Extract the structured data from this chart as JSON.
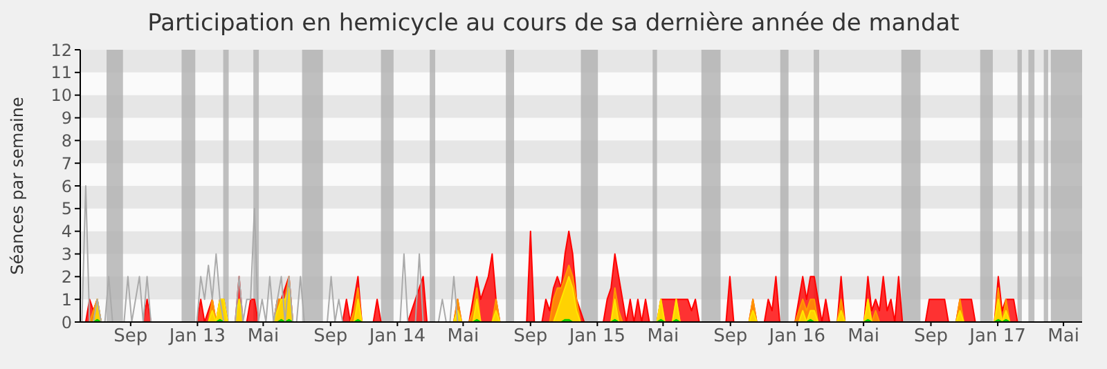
{
  "chart_data": {
    "type": "area",
    "title": "Participation en hemicycle au cours de sa dernière année de mandat",
    "ylabel": "Séances par semaine",
    "series": [
      {
        "type": "line",
        "color": "#aaaaaa",
        "x": [
          "2012-06-04",
          "2012-06-11",
          "2012-06-18",
          "2012-06-25",
          "2012-07-02",
          "2012-07-09",
          "2012-07-16",
          "2012-07-23",
          "2012-07-30",
          "2012-08-20",
          "2012-08-27",
          "2012-09-03",
          "2012-09-17",
          "2012-09-24",
          "2012-10-01",
          "2012-10-08",
          "2012-12-31",
          "2013-01-07",
          "2013-01-14",
          "2013-01-21",
          "2013-01-28",
          "2013-02-04",
          "2013-02-11",
          "2013-02-18",
          "2013-03-11",
          "2013-03-18",
          "2013-03-25",
          "2013-04-01",
          "2013-04-08",
          "2013-04-15",
          "2013-04-22",
          "2013-04-29",
          "2013-05-06",
          "2013-05-13",
          "2013-05-20",
          "2013-05-27",
          "2013-06-03",
          "2013-06-10",
          "2013-06-17",
          "2013-06-24",
          "2013-07-01",
          "2013-07-08",
          "2013-07-15",
          "2013-08-26",
          "2013-09-02",
          "2013-09-09",
          "2013-09-16",
          "2013-09-23",
          "2014-01-06",
          "2014-01-13",
          "2014-01-20",
          "2014-02-03",
          "2014-02-10",
          "2014-02-17",
          "2014-03-17",
          "2014-03-24",
          "2014-03-31",
          "2014-04-07",
          "2014-04-14",
          "2014-04-21",
          "2017-05-29"
        ],
        "values": [
          0,
          6,
          0,
          0,
          1,
          0,
          0,
          2,
          0,
          0,
          2,
          0,
          2,
          0,
          2,
          0,
          0,
          2,
          1,
          2.5,
          1,
          3,
          1,
          0,
          0,
          2,
          0,
          1,
          1,
          5,
          0,
          1,
          0,
          2,
          0,
          1,
          2,
          0,
          2,
          0,
          0,
          2,
          0,
          0,
          2,
          0,
          1,
          0,
          0,
          3,
          0,
          0,
          3,
          0,
          0,
          1,
          0,
          0,
          2,
          0,
          0
        ]
      },
      {
        "color": "#ff0000",
        "x": [
          "2012-06-04",
          "2012-06-11",
          "2012-06-18",
          "2012-06-25",
          "2012-07-02",
          "2012-07-09",
          "2012-09-24",
          "2012-10-01",
          "2012-10-08",
          "2012-12-31",
          "2013-01-07",
          "2013-01-14",
          "2013-01-21",
          "2013-01-28",
          "2013-02-04",
          "2013-02-11",
          "2013-02-18",
          "2013-02-25",
          "2013-03-11",
          "2013-03-18",
          "2013-03-25",
          "2013-04-01",
          "2013-04-08",
          "2013-04-15",
          "2013-04-22",
          "2013-05-20",
          "2013-05-27",
          "2013-06-03",
          "2013-06-10",
          "2013-06-17",
          "2013-06-24",
          "2013-09-23",
          "2013-09-30",
          "2013-10-07",
          "2013-10-14",
          "2013-10-21",
          "2013-10-28",
          "2013-11-18",
          "2013-11-25",
          "2013-12-02",
          "2014-01-20",
          "2014-01-27",
          "2014-02-03",
          "2014-02-10",
          "2014-02-17",
          "2014-02-24",
          "2014-04-14",
          "2014-04-21",
          "2014-04-28",
          "2014-05-12",
          "2014-05-19",
          "2014-05-26",
          "2014-06-02",
          "2014-06-09",
          "2014-06-16",
          "2014-06-23",
          "2014-06-30",
          "2014-07-07",
          "2014-08-25",
          "2014-09-01",
          "2014-09-08",
          "2014-09-22",
          "2014-09-29",
          "2014-10-06",
          "2014-10-13",
          "2014-10-20",
          "2014-10-27",
          "2014-11-03",
          "2014-11-10",
          "2014-11-17",
          "2014-11-24",
          "2014-12-01",
          "2014-12-08",
          "2015-01-12",
          "2015-01-19",
          "2015-01-26",
          "2015-02-02",
          "2015-02-09",
          "2015-02-16",
          "2015-02-23",
          "2015-03-02",
          "2015-03-09",
          "2015-03-16",
          "2015-03-23",
          "2015-03-30",
          "2015-04-06",
          "2015-04-20",
          "2015-04-27",
          "2015-05-04",
          "2015-05-11",
          "2015-05-18",
          "2015-05-25",
          "2015-06-01",
          "2015-06-08",
          "2015-06-15",
          "2015-06-22",
          "2015-06-29",
          "2015-07-06",
          "2015-08-24",
          "2015-08-31",
          "2015-09-07",
          "2015-10-05",
          "2015-10-12",
          "2015-10-19",
          "2015-11-02",
          "2015-11-09",
          "2015-11-16",
          "2015-11-23",
          "2015-11-30",
          "2015-12-28",
          "2016-01-04",
          "2016-01-11",
          "2016-01-18",
          "2016-01-25",
          "2016-02-01",
          "2016-02-08",
          "2016-02-15",
          "2016-02-22",
          "2016-02-29",
          "2016-03-14",
          "2016-03-21",
          "2016-03-28",
          "2016-05-02",
          "2016-05-09",
          "2016-05-16",
          "2016-05-23",
          "2016-05-30",
          "2016-06-06",
          "2016-06-13",
          "2016-06-20",
          "2016-06-27",
          "2016-07-04",
          "2016-07-11",
          "2016-08-22",
          "2016-08-29",
          "2016-09-05",
          "2016-09-12",
          "2016-09-19",
          "2016-09-26",
          "2016-10-03",
          "2016-10-17",
          "2016-10-24",
          "2016-10-31",
          "2016-11-07",
          "2016-11-14",
          "2016-11-21",
          "2016-12-26",
          "2017-01-02",
          "2017-01-09",
          "2017-01-16",
          "2017-01-23",
          "2017-01-30",
          "2017-02-06",
          "2017-05-29"
        ],
        "values": [
          0,
          0,
          1,
          0.5,
          1,
          0,
          0,
          1,
          0,
          0,
          1,
          0,
          0.5,
          1,
          0,
          1,
          1,
          0,
          0,
          2,
          0,
          0,
          1,
          1,
          0,
          0,
          1,
          1,
          1.5,
          2,
          0,
          0,
          1,
          0,
          1,
          2,
          0,
          0,
          1,
          0,
          0,
          0.5,
          1,
          1.5,
          2,
          0,
          0,
          1,
          0,
          0,
          1,
          2,
          1,
          1.5,
          2,
          3,
          1,
          0,
          0,
          4,
          0,
          0,
          1,
          0.5,
          1.5,
          2,
          1.5,
          3,
          4,
          3,
          1,
          0.5,
          0,
          0,
          1,
          1.5,
          3,
          2,
          1,
          0,
          1,
          0,
          1,
          0,
          1,
          0,
          0,
          1,
          1,
          1,
          1,
          1,
          1,
          1,
          1,
          0.5,
          1,
          0,
          0,
          2,
          0,
          0,
          1,
          0,
          0,
          1,
          0.5,
          2,
          0,
          0,
          1,
          2,
          1,
          2,
          2,
          1,
          0,
          1,
          0,
          0,
          2,
          0,
          0,
          2,
          0.5,
          1,
          0.5,
          2,
          0.5,
          1,
          0,
          2,
          0,
          0,
          1,
          1,
          1,
          1,
          1,
          0,
          0,
          1,
          1,
          1,
          1,
          0,
          0,
          2,
          0.5,
          1,
          1,
          1,
          0,
          0
        ]
      },
      {
        "color": "#ff9900",
        "x": [
          "2012-06-04",
          "2012-06-18",
          "2012-06-25",
          "2012-07-02",
          "2012-07-09",
          "2013-01-21",
          "2013-01-28",
          "2013-02-04",
          "2013-02-11",
          "2013-02-18",
          "2013-02-25",
          "2013-03-11",
          "2013-03-18",
          "2013-03-25",
          "2013-05-20",
          "2013-05-27",
          "2013-06-03",
          "2013-06-10",
          "2013-06-17",
          "2013-06-24",
          "2013-10-07",
          "2013-10-14",
          "2013-10-21",
          "2013-10-28",
          "2014-04-14",
          "2014-04-21",
          "2014-04-28",
          "2014-05-12",
          "2014-05-19",
          "2014-05-26",
          "2014-06-02",
          "2014-06-23",
          "2014-06-30",
          "2014-07-07",
          "2014-10-06",
          "2014-10-13",
          "2014-10-20",
          "2014-10-27",
          "2014-11-03",
          "2014-11-10",
          "2014-11-17",
          "2014-11-24",
          "2014-12-01",
          "2015-01-26",
          "2015-02-02",
          "2015-02-09",
          "2015-02-16",
          "2015-04-20",
          "2015-04-27",
          "2015-05-04",
          "2015-05-18",
          "2015-05-25",
          "2015-06-01",
          "2015-10-05",
          "2015-10-12",
          "2015-10-19",
          "2015-12-28",
          "2016-01-04",
          "2016-01-11",
          "2016-01-18",
          "2016-01-25",
          "2016-02-01",
          "2016-02-08",
          "2016-03-14",
          "2016-03-21",
          "2016-03-28",
          "2016-05-02",
          "2016-05-09",
          "2016-05-16",
          "2016-05-23",
          "2016-05-30",
          "2016-10-17",
          "2016-10-24",
          "2016-10-31",
          "2016-12-26",
          "2017-01-02",
          "2017-01-09",
          "2017-01-16",
          "2017-01-23",
          "2017-05-29"
        ],
        "values": [
          0,
          0,
          0.5,
          1,
          0,
          0,
          1,
          0,
          1,
          1,
          0,
          0,
          1,
          0,
          0,
          1,
          1,
          1,
          2,
          0,
          0,
          0.5,
          1.5,
          0,
          0,
          1,
          0,
          0,
          0.5,
          1.5,
          0,
          0,
          1,
          0,
          0,
          1,
          1.5,
          1.5,
          2,
          2.5,
          2,
          1,
          0,
          0,
          1.5,
          0.5,
          0,
          0,
          1,
          0,
          0,
          1,
          0,
          0,
          1,
          0,
          0,
          0.5,
          1,
          0.5,
          1,
          1,
          0,
          0,
          1,
          0,
          0,
          1,
          0,
          0.5,
          0,
          0,
          1,
          0,
          0,
          1.5,
          0,
          1,
          0,
          0
        ]
      },
      {
        "color": "#ffe600",
        "x": [
          "2012-06-04",
          "2012-06-25",
          "2012-07-02",
          "2012-07-09",
          "2013-01-21",
          "2013-01-28",
          "2013-02-04",
          "2013-02-11",
          "2013-02-18",
          "2013-02-25",
          "2013-03-11",
          "2013-03-18",
          "2013-03-25",
          "2013-05-20",
          "2013-05-27",
          "2013-06-03",
          "2013-06-10",
          "2013-06-17",
          "2013-06-24",
          "2013-10-14",
          "2013-10-21",
          "2013-10-28",
          "2014-04-14",
          "2014-04-21",
          "2014-04-28",
          "2014-05-19",
          "2014-05-26",
          "2014-06-02",
          "2014-06-23",
          "2014-06-30",
          "2014-07-07",
          "2014-10-13",
          "2014-10-20",
          "2014-10-27",
          "2014-11-03",
          "2014-11-10",
          "2014-11-17",
          "2014-11-24",
          "2014-12-01",
          "2015-01-26",
          "2015-02-02",
          "2015-02-09",
          "2015-04-20",
          "2015-04-27",
          "2015-05-04",
          "2015-05-18",
          "2015-05-25",
          "2015-06-01",
          "2015-10-05",
          "2015-10-12",
          "2015-10-19",
          "2016-01-04",
          "2016-01-11",
          "2016-01-18",
          "2016-01-25",
          "2016-02-01",
          "2016-02-08",
          "2016-03-14",
          "2016-03-21",
          "2016-03-28",
          "2016-05-02",
          "2016-05-09",
          "2016-05-16",
          "2016-10-17",
          "2016-10-24",
          "2016-10-31",
          "2016-12-26",
          "2017-01-02",
          "2017-01-09",
          "2017-01-16",
          "2017-01-23",
          "2017-05-29"
        ],
        "values": [
          0,
          0,
          1,
          0,
          0,
          0.5,
          0,
          1,
          1,
          0,
          0,
          1,
          0,
          0,
          0.5,
          1,
          1,
          1.5,
          0,
          0,
          1,
          0,
          0,
          0.5,
          0,
          0,
          1,
          0,
          0,
          0.5,
          0,
          0,
          0.5,
          1,
          1.5,
          2,
          1.5,
          0.5,
          0,
          0,
          1,
          0,
          0,
          1,
          0,
          0,
          1,
          0,
          0,
          0.5,
          0,
          0,
          0.5,
          0,
          0.5,
          0.5,
          0,
          0,
          0.5,
          0,
          0,
          1,
          0,
          0,
          0.5,
          0,
          0,
          1,
          0,
          0.5,
          0,
          0
        ]
      },
      {
        "color": "#00cc00",
        "x": [
          "2012-06-04",
          "2012-06-25",
          "2012-07-02",
          "2012-07-09",
          "2013-02-04",
          "2013-02-11",
          "2013-02-18",
          "2013-05-27",
          "2013-06-03",
          "2013-06-10",
          "2013-06-17",
          "2013-06-24",
          "2013-10-14",
          "2013-10-21",
          "2013-10-28",
          "2014-05-19",
          "2014-05-26",
          "2014-06-02",
          "2014-10-27",
          "2014-11-03",
          "2014-11-10",
          "2014-11-17",
          "2015-01-26",
          "2015-02-02",
          "2015-02-09",
          "2015-04-20",
          "2015-04-27",
          "2015-05-04",
          "2015-05-18",
          "2015-05-25",
          "2015-06-01",
          "2016-01-18",
          "2016-01-25",
          "2016-02-01",
          "2016-05-02",
          "2016-05-09",
          "2016-05-16",
          "2016-12-26",
          "2017-01-02",
          "2017-01-09",
          "2017-01-16",
          "2017-01-23",
          "2017-05-29"
        ],
        "values": [
          0,
          0,
          0.1,
          0,
          0,
          0.1,
          0,
          0,
          0.1,
          0,
          0.1,
          0,
          0,
          0.1,
          0,
          0,
          0.1,
          0,
          0,
          0.1,
          0.1,
          0,
          0,
          0.1,
          0,
          0,
          0.1,
          0,
          0,
          0.1,
          0,
          0,
          0.1,
          0,
          0,
          0.1,
          0,
          0,
          0.1,
          0,
          0.1,
          0,
          0
        ]
      }
    ],
    "xlim": [
      "2012-06-01",
      "2017-06-04"
    ],
    "xticks": [
      {
        "value": "2012-09-01",
        "label": "Sep"
      },
      {
        "value": "2013-01-01",
        "label": "Jan 13"
      },
      {
        "value": "2013-05-01",
        "label": "Mai"
      },
      {
        "value": "2013-09-01",
        "label": "Sep"
      },
      {
        "value": "2014-01-01",
        "label": "Jan 14"
      },
      {
        "value": "2014-05-01",
        "label": "Mai"
      },
      {
        "value": "2014-09-01",
        "label": "Sep"
      },
      {
        "value": "2015-01-01",
        "label": "Jan 15"
      },
      {
        "value": "2015-05-01",
        "label": "Mai"
      },
      {
        "value": "2015-09-01",
        "label": "Sep"
      },
      {
        "value": "2016-01-01",
        "label": "Jan 16"
      },
      {
        "value": "2016-05-01",
        "label": "Mai"
      },
      {
        "value": "2016-09-01",
        "label": "Sep"
      },
      {
        "value": "2017-01-01",
        "label": "Jan 17"
      },
      {
        "value": "2017-05-01",
        "label": "Mai"
      }
    ],
    "ylim": [
      0,
      12
    ],
    "yticks": [
      0,
      1,
      2,
      3,
      4,
      5,
      6,
      7,
      8,
      9,
      10,
      11,
      12
    ],
    "legend": false,
    "marker": "none",
    "bands": [
      {
        "axis": "y",
        "from": 1,
        "to": 2,
        "color": "#e6e6e6"
      },
      {
        "axis": "y",
        "from": 3,
        "to": 4,
        "color": "#e6e6e6"
      },
      {
        "axis": "y",
        "from": 5,
        "to": 6,
        "color": "#e6e6e6"
      },
      {
        "axis": "y",
        "from": 7,
        "to": 8,
        "color": "#e6e6e6"
      },
      {
        "axis": "y",
        "from": 9,
        "to": 10,
        "color": "#e6e6e6"
      },
      {
        "axis": "y",
        "from": 11,
        "to": 12,
        "color": "#e6e6e6"
      },
      {
        "axis": "x",
        "from": "2012-07-19",
        "to": "2012-08-18",
        "color": "#b0b0b0"
      },
      {
        "axis": "x",
        "from": "2012-12-03",
        "to": "2012-12-28",
        "color": "#b0b0b0"
      },
      {
        "axis": "x",
        "from": "2013-02-17",
        "to": "2013-02-27",
        "color": "#b0b0b0"
      },
      {
        "axis": "x",
        "from": "2013-04-13",
        "to": "2013-04-23",
        "color": "#b0b0b0"
      },
      {
        "axis": "x",
        "from": "2013-07-11",
        "to": "2013-08-18",
        "color": "#b0b0b0"
      },
      {
        "axis": "x",
        "from": "2013-12-02",
        "to": "2013-12-25",
        "color": "#b0b0b0"
      },
      {
        "axis": "x",
        "from": "2014-03-01",
        "to": "2014-03-11",
        "color": "#b0b0b0"
      },
      {
        "axis": "x",
        "from": "2014-07-18",
        "to": "2014-08-02",
        "color": "#b0b0b0"
      },
      {
        "axis": "x",
        "from": "2014-12-02",
        "to": "2015-01-02",
        "color": "#b0b0b0"
      },
      {
        "axis": "x",
        "from": "2015-04-12",
        "to": "2015-04-20",
        "color": "#b0b0b0"
      },
      {
        "axis": "x",
        "from": "2015-07-10",
        "to": "2015-08-14",
        "color": "#b0b0b0"
      },
      {
        "axis": "x",
        "from": "2015-12-01",
        "to": "2015-12-16",
        "color": "#b0b0b0"
      },
      {
        "axis": "x",
        "from": "2016-01-31",
        "to": "2016-02-10",
        "color": "#b0b0b0"
      },
      {
        "axis": "x",
        "from": "2016-07-09",
        "to": "2016-08-13",
        "color": "#b0b0b0"
      },
      {
        "axis": "x",
        "from": "2016-11-30",
        "to": "2016-12-23",
        "color": "#b0b0b0"
      },
      {
        "axis": "x",
        "from": "2017-02-06",
        "to": "2017-02-14",
        "color": "#b0b0b0"
      },
      {
        "axis": "x",
        "from": "2017-02-26",
        "to": "2017-03-09",
        "color": "#b0b0b0"
      },
      {
        "axis": "x",
        "from": "2017-03-26",
        "to": "2017-04-03",
        "color": "#b0b0b0"
      },
      {
        "axis": "x",
        "from": "2017-04-08",
        "to": "2017-06-04",
        "color": "#b0b0b0"
      }
    ]
  }
}
